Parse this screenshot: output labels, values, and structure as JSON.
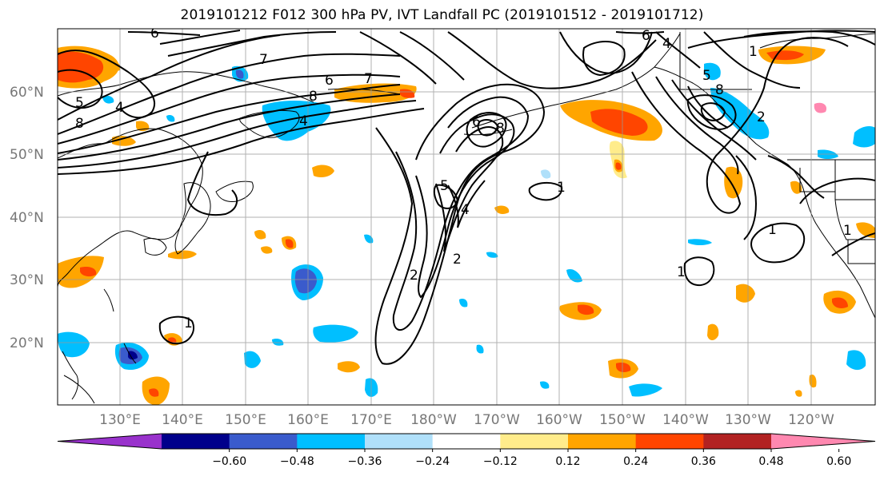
{
  "title": "2019101212 F012 300 hPa PV, IVT Landfall PC (2019101512 - 2019101712)",
  "lat_labels": [
    "60°N",
    "50°N",
    "40°N",
    "30°N",
    "20°N"
  ],
  "lon_labels": [
    "130°E",
    "140°E",
    "150°E",
    "160°E",
    "170°E",
    "180°W",
    "170°W",
    "160°W",
    "150°W",
    "140°W",
    "130°W",
    "120°W"
  ],
  "colorbar": {
    "ticks": [
      "−0.60",
      "−0.48",
      "−0.36",
      "−0.24",
      "−0.12",
      "0.12",
      "0.24",
      "0.36",
      "0.48",
      "0.60"
    ],
    "colors": [
      "#9932cc",
      "#00008b",
      "#3a5bcc",
      "#00bfff",
      "#b0e0fa",
      "#ffffff",
      "#ffec8b",
      "#ffa500",
      "#ff4500",
      "#b22222",
      "#ff88b0"
    ],
    "extend": "both"
  },
  "contour_labels": [
    "5",
    "4",
    "6",
    "7",
    "8",
    "6",
    "7",
    "8",
    "4",
    "5",
    "2",
    "4",
    "6",
    "8",
    "2",
    "1",
    "1",
    "1",
    "1",
    "5",
    "4",
    "6",
    "8",
    "2",
    "1",
    "1"
  ]
}
